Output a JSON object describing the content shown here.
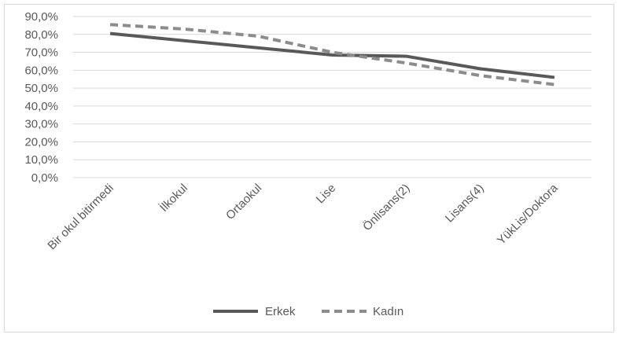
{
  "chart_data": {
    "type": "line",
    "title": "",
    "xlabel": "",
    "ylabel": "",
    "categories": [
      "Bir okul bitirmedi",
      "İlkokul",
      "Ortaokul",
      "Lise",
      "Önlisans(2)",
      "Lisans(4)",
      "YükLis/Doktora"
    ],
    "y_ticks": [
      "0,0%",
      "10,0%",
      "20,0%",
      "30,0%",
      "40,0%",
      "50,0%",
      "60,0%",
      "70,0%",
      "80,0%",
      "90,0%"
    ],
    "ylim": [
      0,
      90
    ],
    "grid": true,
    "legend_position": "bottom",
    "series": [
      {
        "name": "Erkek",
        "values": [
          80.5,
          76.5,
          72.5,
          68.5,
          67.8,
          60.8,
          56.0
        ],
        "color": "#595959",
        "dash": "solid"
      },
      {
        "name": "Kadın",
        "values": [
          85.5,
          83.0,
          79.0,
          70.0,
          64.0,
          57.0,
          52.0
        ],
        "color": "#8c8c8c",
        "dash": "dashed"
      }
    ]
  }
}
